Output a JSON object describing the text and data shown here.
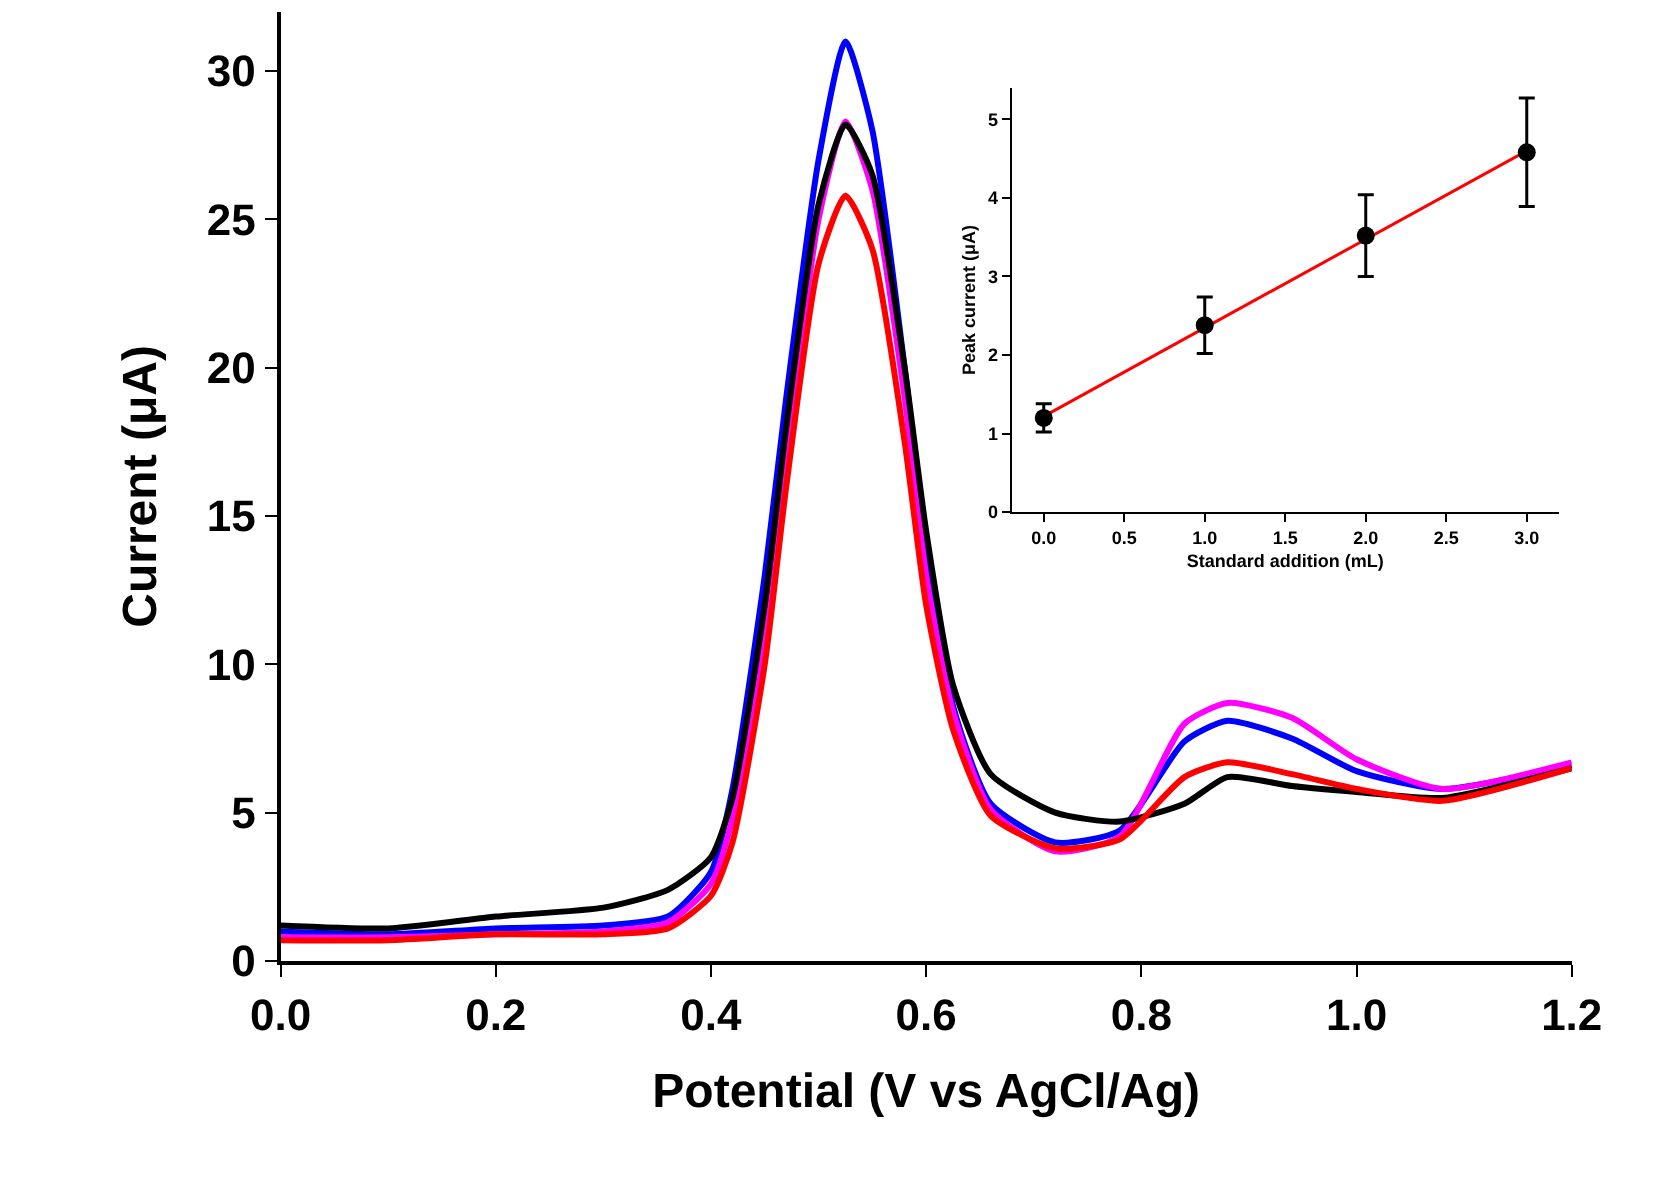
{
  "chart_data": [
    {
      "type": "line",
      "xlabel": "Potential (V vs AgCl/Ag)",
      "ylabel": "Current (μA)",
      "xlim": [
        0,
        1.2
      ],
      "ylim": [
        0,
        32
      ],
      "xticks": [
        {
          "value": 0,
          "label": "0.0"
        },
        {
          "value": 0.2,
          "label": "0.2"
        },
        {
          "value": 0.4,
          "label": "0.4"
        },
        {
          "value": 0.6,
          "label": "0.6"
        },
        {
          "value": 0.8,
          "label": "0.8"
        },
        {
          "value": 1.0,
          "label": "1.0"
        },
        {
          "value": 1.2,
          "label": "1.2"
        }
      ],
      "yticks": [
        0,
        5,
        10,
        15,
        20,
        25,
        30
      ],
      "line_style": "solid",
      "x": [
        0,
        0.1,
        0.2,
        0.3,
        0.36,
        0.4,
        0.42,
        0.45,
        0.47,
        0.5,
        0.525,
        0.55,
        0.58,
        0.6,
        0.625,
        0.66,
        0.72,
        0.78,
        0.84,
        0.88,
        0.94,
        1.0,
        1.08,
        1.2
      ],
      "series": [
        {
          "color": "#0000ff",
          "values": [
            1.0,
            0.9,
            1.1,
            1.2,
            1.5,
            3.0,
            5.8,
            13,
            19,
            27,
            31.0,
            28,
            20,
            14,
            8.6,
            5.3,
            4.0,
            4.4,
            7.4,
            8.1,
            7.5,
            6.4,
            5.8,
            6.6
          ]
        },
        {
          "color": "#ff00ff",
          "values": [
            0.8,
            0.8,
            0.9,
            1.0,
            1.3,
            2.6,
            4.8,
            11,
            17,
            25,
            28.3,
            26,
            19,
            13,
            8.4,
            5.1,
            3.7,
            4.2,
            8.0,
            8.7,
            8.2,
            6.8,
            5.8,
            6.7
          ]
        },
        {
          "color": "#000000",
          "values": [
            1.2,
            1.1,
            1.5,
            1.8,
            2.4,
            3.5,
            5.5,
            12,
            18,
            25.5,
            28.2,
            26.5,
            20,
            14.5,
            9.3,
            6.3,
            5.0,
            4.7,
            5.3,
            6.2,
            5.9,
            5.7,
            5.5,
            6.5
          ]
        },
        {
          "color": "#ff0000",
          "values": [
            0.7,
            0.7,
            0.9,
            0.9,
            1.1,
            2.2,
            4.0,
            10,
            16,
            23.5,
            25.8,
            24,
            17.5,
            12,
            7.8,
            4.9,
            3.8,
            4.1,
            6.2,
            6.7,
            6.3,
            5.8,
            5.4,
            6.5
          ]
        }
      ]
    },
    {
      "type": "scatter",
      "xlabel": "Standard addition (mL)",
      "ylabel": "Peak current (μA)",
      "xlim": [
        -0.2,
        3.2
      ],
      "ylim": [
        0,
        5.4
      ],
      "xticks": [
        {
          "value": 0,
          "label": "0.0"
        },
        {
          "value": 0.5,
          "label": "0.5"
        },
        {
          "value": 1.0,
          "label": "1.0"
        },
        {
          "value": 1.5,
          "label": "1.5"
        },
        {
          "value": 2.0,
          "label": "2.0"
        },
        {
          "value": 2.5,
          "label": "2.5"
        },
        {
          "value": 3.0,
          "label": "3.0"
        }
      ],
      "yticks": [
        0,
        1,
        2,
        3,
        4,
        5
      ],
      "series": [
        {
          "type": "line",
          "color": "#ff0000",
          "x": [
            0,
            3
          ],
          "values": [
            1.22,
            4.6
          ]
        },
        {
          "type": "scatter",
          "marker": "circle",
          "color": "#000000",
          "x": [
            0,
            1,
            2,
            3
          ],
          "values": [
            1.2,
            2.38,
            3.52,
            4.58
          ],
          "errors": [
            0.18,
            0.36,
            0.52,
            0.69
          ]
        }
      ]
    }
  ]
}
